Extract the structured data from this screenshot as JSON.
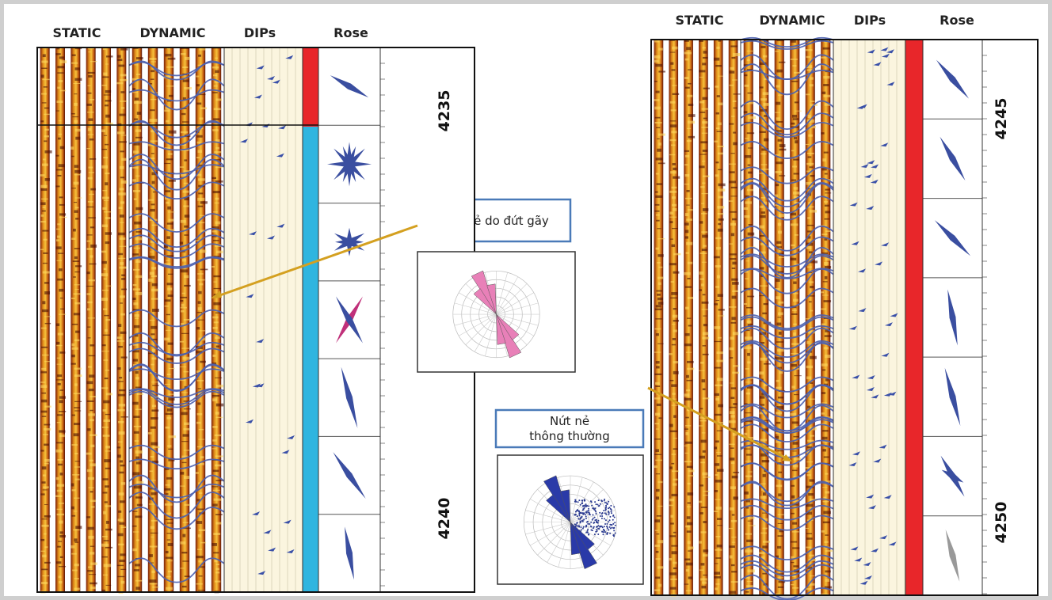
{
  "left_panel": {
    "headers": [
      "STATIC",
      "DYNAMIC",
      "DIPs",
      "Rose"
    ],
    "depths": [
      4235,
      4240
    ]
  },
  "right_panel": {
    "headers": [
      "STATIC",
      "DYNAMIC",
      "DIPs",
      "Rose"
    ],
    "depths": [
      4245,
      4250
    ]
  },
  "callouts": {
    "fault": "Nứt nẻ do đứt gãy",
    "normal": [
      "Nứt nẻ",
      "thông thường"
    ]
  }
}
